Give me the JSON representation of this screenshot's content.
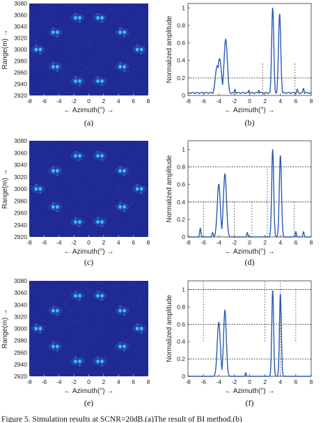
{
  "caption": "Figure 5.  Simulation results at SCNR=20dB.(a)The result of BI method.(b)",
  "chart_data": [
    {
      "type": "heatmap",
      "panel_label": "(a)",
      "xlabel": "← Azimuth(°) →",
      "ylabel": "Range(m) →",
      "xlim": [
        -8,
        8
      ],
      "ylim": [
        2920,
        3080
      ],
      "xticks": [
        "-8",
        "-6",
        "-4",
        "-2",
        "0",
        "2",
        "4",
        "6",
        "8"
      ],
      "yticks": [
        "3080",
        "3060",
        "3040",
        "3020",
        "3000",
        "2980",
        "2960",
        "2940",
        "2920"
      ],
      "background": "#202a94",
      "spot_color": "#39c6e8",
      "targets": [
        {
          "azimuth": -1.5,
          "range": 3055
        },
        {
          "azimuth": 1.5,
          "range": 3055
        },
        {
          "azimuth": -4.5,
          "range": 3030
        },
        {
          "azimuth": 4.5,
          "range": 3030
        },
        {
          "azimuth": -6.8,
          "range": 3000
        },
        {
          "azimuth": 6.8,
          "range": 3000
        },
        {
          "azimuth": -4.5,
          "range": 2970
        },
        {
          "azimuth": 4.5,
          "range": 2970
        },
        {
          "azimuth": -1.5,
          "range": 2945
        },
        {
          "azimuth": 1.5,
          "range": 2945
        }
      ]
    },
    {
      "type": "line",
      "panel_label": "(b)",
      "xlabel": "← Azimuth(°) →",
      "ylabel": "Normalized amplitude",
      "xlim": [
        -8,
        8
      ],
      "ylim": [
        0,
        1.05
      ],
      "xticks": [
        "-8",
        "-6",
        "-4",
        "-2",
        "0",
        "2",
        "4",
        "6",
        "8"
      ],
      "yticks": [
        "0",
        "0.2",
        "0.4",
        "0.6",
        "0.8",
        "1"
      ],
      "line_color": "#2a5bb0",
      "hlines": [
        0.2
      ],
      "vlines": [
        {
          "x": 1.7,
          "y0": 0,
          "y1": 0.38
        },
        {
          "x": 5.9,
          "y0": 0,
          "y1": 0.38
        }
      ],
      "peaks": [
        {
          "x": -4.2,
          "y": 0.34,
          "w": 0.25
        },
        {
          "x": -3.9,
          "y": 0.42,
          "w": 0.25
        },
        {
          "x": -3.1,
          "y": 0.64,
          "w": 0.22
        },
        {
          "x": 3.0,
          "y": 1.0,
          "w": 0.14
        },
        {
          "x": 3.9,
          "y": 0.93,
          "w": 0.15
        },
        {
          "x": 6.2,
          "y": 0.07,
          "w": 0.1
        },
        {
          "x": 7.0,
          "y": 0.08,
          "w": 0.1
        },
        {
          "x": -1.9,
          "y": 0.07,
          "w": 0.08
        },
        {
          "x": -0.1,
          "y": 0.06,
          "w": 0.08
        },
        {
          "x": 1.2,
          "y": 0.06,
          "w": 0.08
        }
      ],
      "baseline": 0.035
    },
    {
      "type": "heatmap",
      "panel_label": "(c)",
      "xlabel": "← Azimuth(°) →",
      "ylabel": "Range(m) →",
      "xlim": [
        -8,
        8
      ],
      "ylim": [
        2920,
        3080
      ],
      "xticks": [
        "-8",
        "-6",
        "-4",
        "-2",
        "0",
        "2",
        "4",
        "6",
        "8"
      ],
      "yticks": [
        "3080",
        "3060",
        "3040",
        "3020",
        "3000",
        "2980",
        "2960",
        "2940",
        "2920"
      ],
      "background": "#202a94",
      "spot_color": "#39c6e8",
      "targets": [
        {
          "azimuth": -1.5,
          "range": 3055
        },
        {
          "azimuth": 1.5,
          "range": 3055
        },
        {
          "azimuth": -4.5,
          "range": 3030
        },
        {
          "azimuth": 4.5,
          "range": 3030
        },
        {
          "azimuth": -6.8,
          "range": 3000
        },
        {
          "azimuth": 6.8,
          "range": 3000
        },
        {
          "azimuth": -4.5,
          "range": 2970
        },
        {
          "azimuth": 4.5,
          "range": 2970
        },
        {
          "azimuth": -1.5,
          "range": 2945
        },
        {
          "azimuth": 1.5,
          "range": 2945
        }
      ]
    },
    {
      "type": "line",
      "panel_label": "(d)",
      "xlabel": "← Azimuth(°) →",
      "ylabel": "Normalized amplitude",
      "xlim": [
        -8,
        8
      ],
      "ylim": [
        0,
        1.1
      ],
      "xticks": [
        "-8",
        "-6",
        "-4",
        "-2",
        "0",
        "2",
        "4",
        "6",
        "8"
      ],
      "yticks": [
        "0",
        "0.2",
        "0.4",
        "0.6",
        "0.8",
        "1"
      ],
      "line_color": "#2a5bb0",
      "hlines": [
        0.8,
        0.4
      ],
      "vlines": [
        {
          "x": -6.0,
          "y0": 0,
          "y1": 0.4
        },
        {
          "x": -2.0,
          "y0": 0,
          "y1": 0.4
        },
        {
          "x": 0.3,
          "y0": 0,
          "y1": 0.4
        },
        {
          "x": 2.3,
          "y0": 0,
          "y1": 0.8
        },
        {
          "x": 5.8,
          "y0": 0,
          "y1": 0.4
        }
      ],
      "peaks": [
        {
          "x": -6.4,
          "y": 0.1,
          "w": 0.08
        },
        {
          "x": -4.8,
          "y": 0.05,
          "w": 0.08
        },
        {
          "x": -4.0,
          "y": 0.6,
          "w": 0.2
        },
        {
          "x": -3.2,
          "y": 0.72,
          "w": 0.2
        },
        {
          "x": -0.3,
          "y": 0.05,
          "w": 0.08
        },
        {
          "x": 3.0,
          "y": 1.0,
          "w": 0.13
        },
        {
          "x": 4.0,
          "y": 0.93,
          "w": 0.14
        },
        {
          "x": 6.0,
          "y": 0.06,
          "w": 0.08
        },
        {
          "x": 7.0,
          "y": 0.06,
          "w": 0.08
        }
      ],
      "baseline": 0.0
    },
    {
      "type": "heatmap",
      "panel_label": "(e)",
      "xlabel": "← Azimuth(°) →",
      "ylabel": "Range(m) →",
      "xlim": [
        -8,
        8
      ],
      "ylim": [
        2920,
        3080
      ],
      "xticks": [
        "-8",
        "-6",
        "-4",
        "-2",
        "0",
        "2",
        "4",
        "6",
        "8"
      ],
      "yticks": [
        "3080",
        "3060",
        "3040",
        "3020",
        "3000",
        "2980",
        "2960",
        "2940",
        "2920"
      ],
      "background": "#202a94",
      "spot_color": "#39c6e8",
      "targets": [
        {
          "azimuth": -1.5,
          "range": 3055
        },
        {
          "azimuth": 1.5,
          "range": 3055
        },
        {
          "azimuth": -4.5,
          "range": 3030
        },
        {
          "azimuth": 4.5,
          "range": 3030
        },
        {
          "azimuth": -6.8,
          "range": 3000
        },
        {
          "azimuth": 6.8,
          "range": 3000
        },
        {
          "azimuth": -4.5,
          "range": 2970
        },
        {
          "azimuth": 4.5,
          "range": 2970
        },
        {
          "azimuth": -1.5,
          "range": 2945
        },
        {
          "azimuth": 1.5,
          "range": 2945
        }
      ]
    },
    {
      "type": "line",
      "panel_label": "(f)",
      "xlabel": "← Azimuth(°) →",
      "ylabel": "Normalized amplitude",
      "xlim": [
        -8,
        8
      ],
      "ylim": [
        0,
        1.1
      ],
      "xticks": [
        "-8",
        "-6",
        "-4",
        "-2",
        "0",
        "2",
        "4",
        "6",
        "8"
      ],
      "yticks": [
        "0",
        "0.2",
        "0.4",
        "0.6",
        "0.8",
        "1"
      ],
      "line_color": "#2a5bb0",
      "hlines": [
        1.0,
        0.6,
        0.2
      ],
      "vlines": [
        {
          "x": -6.0,
          "y0": 0.4,
          "y1": 1.1
        },
        {
          "x": 2.0,
          "y0": 0.4,
          "y1": 1.1
        },
        {
          "x": 4.0,
          "y0": 0,
          "y1": 1.1
        },
        {
          "x": 6.0,
          "y0": 0.4,
          "y1": 1.0
        }
      ],
      "peaks": [
        {
          "x": -4.0,
          "y": 0.62,
          "w": 0.2
        },
        {
          "x": -3.2,
          "y": 0.76,
          "w": 0.18
        },
        {
          "x": -0.5,
          "y": 0.04,
          "w": 0.06
        },
        {
          "x": 3.0,
          "y": 0.99,
          "w": 0.12
        },
        {
          "x": 4.0,
          "y": 0.95,
          "w": 0.12
        }
      ],
      "baseline": 0.0
    }
  ]
}
